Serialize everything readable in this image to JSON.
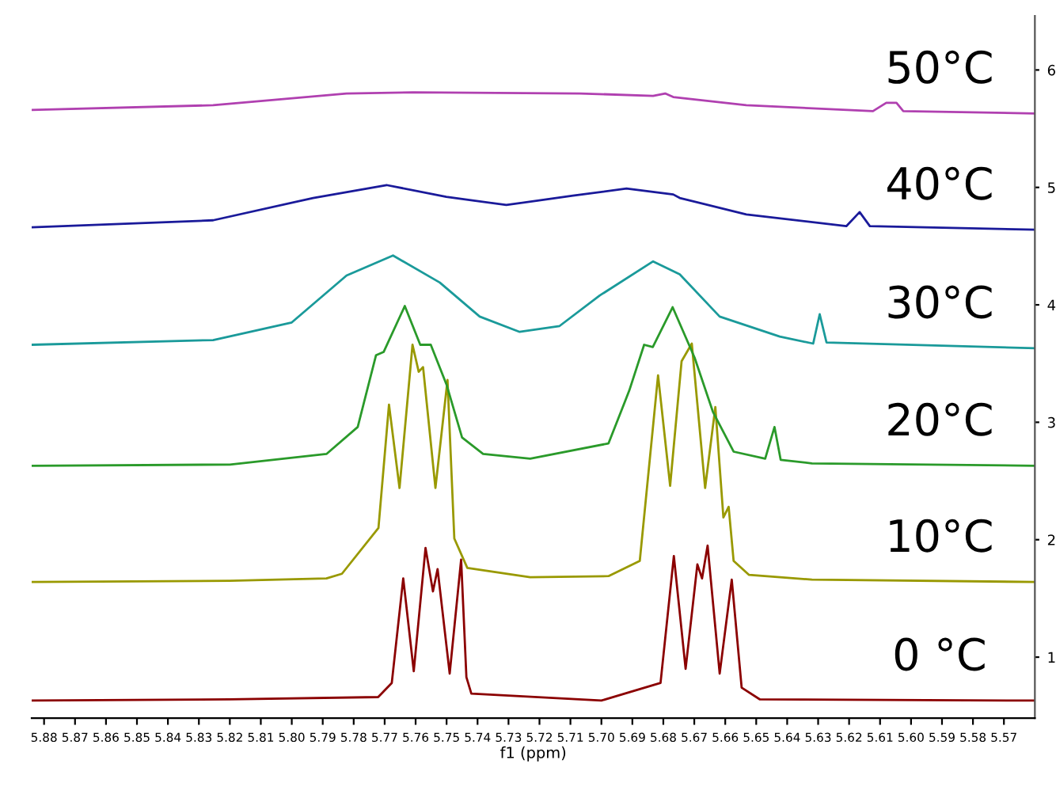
{
  "chart_data": {
    "type": "line",
    "xlabel": "f1 (ppm)",
    "legend": false,
    "grid": false,
    "tick_labels": "xy",
    "xlim": [
      5.884,
      5.56
    ],
    "ylim": [
      0.48,
      6.46
    ],
    "xticks": [
      5.88,
      5.87,
      5.86,
      5.85,
      5.84,
      5.83,
      5.82,
      5.81,
      {
        "value": 5.8,
        "label": "5.80"
      },
      5.79,
      5.78,
      5.77,
      5.76,
      5.75,
      5.74,
      5.73,
      5.72,
      5.71,
      {
        "value": 5.7,
        "label": "5.70"
      },
      5.69,
      5.68,
      5.67,
      5.66,
      5.65,
      5.64,
      5.63,
      5.62,
      5.61,
      {
        "value": 5.6,
        "label": "5.60"
      },
      5.59,
      5.58,
      5.57
    ],
    "yticks": [
      1,
      2,
      3,
      4,
      5,
      6
    ],
    "series": [
      {
        "name": "0 °C",
        "color": "#8b0000",
        "x": [
          5.884,
          5.82,
          5.7721,
          5.7677,
          5.764,
          5.7606,
          5.7568,
          5.7544,
          5.7529,
          5.749,
          5.7453,
          5.7436,
          5.742,
          5.7,
          5.6809,
          5.6766,
          5.6728,
          5.669,
          5.6675,
          5.6657,
          5.6618,
          5.6579,
          5.6547,
          5.6488,
          5.56
        ],
        "values": [
          0.63,
          0.64,
          0.66,
          0.78,
          1.67,
          0.88,
          1.93,
          1.56,
          1.75,
          0.86,
          1.83,
          0.83,
          0.69,
          0.63,
          0.78,
          1.86,
          0.9,
          1.79,
          1.67,
          1.95,
          0.86,
          1.66,
          0.74,
          0.64,
          0.63
        ]
      },
      {
        "name": "10°C",
        "color": "#999900",
        "x": [
          5.884,
          5.82,
          5.7888,
          5.7838,
          5.772,
          5.7686,
          5.7652,
          5.761,
          5.759,
          5.7576,
          5.7536,
          5.7497,
          5.7475,
          5.7433,
          5.723,
          5.6977,
          5.6876,
          5.6817,
          5.6778,
          5.6741,
          5.6708,
          5.6665,
          5.6632,
          5.6606,
          5.6589,
          5.6573,
          5.6523,
          5.632,
          5.56
        ],
        "values": [
          1.64,
          1.65,
          1.67,
          1.71,
          2.1,
          3.15,
          2.44,
          3.66,
          3.43,
          3.47,
          2.44,
          3.36,
          2.01,
          1.76,
          1.68,
          1.69,
          1.82,
          3.4,
          2.46,
          3.52,
          3.67,
          2.44,
          3.13,
          2.19,
          2.28,
          1.82,
          1.7,
          1.66,
          1.64
        ]
      },
      {
        "name": "20°C",
        "color": "#2a9a2a",
        "x": [
          5.884,
          5.82,
          5.7888,
          5.7787,
          5.7728,
          5.7703,
          5.7635,
          5.7585,
          5.7551,
          5.75,
          5.745,
          5.7382,
          5.723,
          5.6977,
          5.691,
          5.6862,
          5.6834,
          5.677,
          5.6699,
          5.664,
          5.6573,
          5.6471,
          5.6441,
          5.6421,
          5.632,
          5.56
        ],
        "values": [
          2.63,
          2.64,
          2.73,
          2.96,
          3.57,
          3.6,
          3.99,
          3.66,
          3.66,
          3.32,
          2.87,
          2.73,
          2.69,
          2.82,
          3.27,
          3.66,
          3.64,
          3.98,
          3.55,
          3.09,
          2.75,
          2.69,
          2.96,
          2.68,
          2.65,
          2.63
        ]
      },
      {
        "name": "30°C",
        "color": "#1a9a9a",
        "x": [
          5.884,
          5.8254,
          5.8,
          5.7823,
          5.7673,
          5.7522,
          5.7393,
          5.7264,
          5.7135,
          5.7005,
          5.6833,
          5.6747,
          5.6618,
          5.6424,
          5.6316,
          5.6295,
          5.6273,
          5.56
        ],
        "values": [
          3.66,
          3.7,
          3.85,
          4.25,
          4.42,
          4.19,
          3.9,
          3.77,
          3.82,
          4.08,
          4.37,
          4.26,
          3.9,
          3.73,
          3.67,
          3.92,
          3.68,
          3.63
        ]
      },
      {
        "name": "40°C",
        "color": "#1a1a9a",
        "x": [
          5.884,
          5.8254,
          5.7931,
          5.7694,
          5.7501,
          5.7307,
          5.7092,
          5.6919,
          5.6768,
          5.6747,
          5.6532,
          5.6209,
          5.6166,
          5.6133,
          5.56
        ],
        "values": [
          4.66,
          4.72,
          4.91,
          5.02,
          4.92,
          4.85,
          4.93,
          4.99,
          4.94,
          4.91,
          4.77,
          4.67,
          4.79,
          4.67,
          4.64
        ]
      },
      {
        "name": "50°C",
        "color": "#b040b0",
        "x": [
          5.884,
          5.8254,
          5.7823,
          5.7608,
          5.7069,
          5.6833,
          5.6794,
          5.6768,
          5.6532,
          5.6123,
          5.608,
          5.6047,
          5.6025,
          5.56
        ],
        "values": [
          5.66,
          5.7,
          5.8,
          5.81,
          5.8,
          5.78,
          5.8,
          5.77,
          5.7,
          5.65,
          5.72,
          5.72,
          5.65,
          5.63
        ]
      }
    ]
  }
}
